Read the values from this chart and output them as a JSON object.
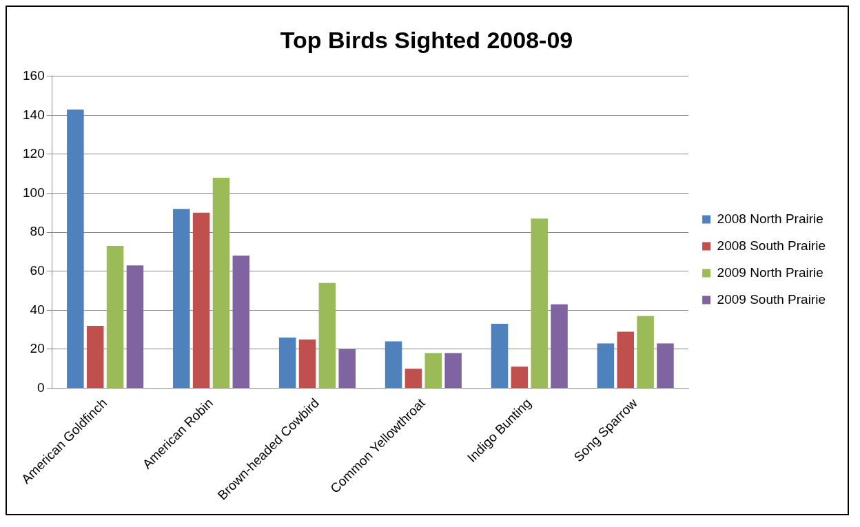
{
  "chart_data": {
    "type": "bar",
    "title": "Top Birds Sighted 2008-09",
    "categories": [
      "American Goldfinch",
      "American Robin",
      "Brown-headed Cowbird",
      "Common Yellowthroat",
      "Indigo Bunting",
      "Song Sparrow"
    ],
    "series": [
      {
        "name": "2008 North Prairie",
        "color": "#4f81bd",
        "values": [
          143,
          92,
          26,
          24,
          33,
          23
        ]
      },
      {
        "name": "2008 South Prairie",
        "color": "#c0504d",
        "values": [
          32,
          90,
          25,
          10,
          11,
          29
        ]
      },
      {
        "name": "2009 North Prairie",
        "color": "#9bbb59",
        "values": [
          73,
          108,
          54,
          18,
          87,
          37
        ]
      },
      {
        "name": "2009 South Prairie",
        "color": "#8064a2",
        "values": [
          63,
          68,
          20,
          18,
          43,
          23
        ]
      }
    ],
    "ylim": [
      0,
      160
    ],
    "yticks": [
      0,
      20,
      40,
      60,
      80,
      100,
      120,
      140,
      160
    ],
    "grid": "y",
    "legend": "right"
  }
}
